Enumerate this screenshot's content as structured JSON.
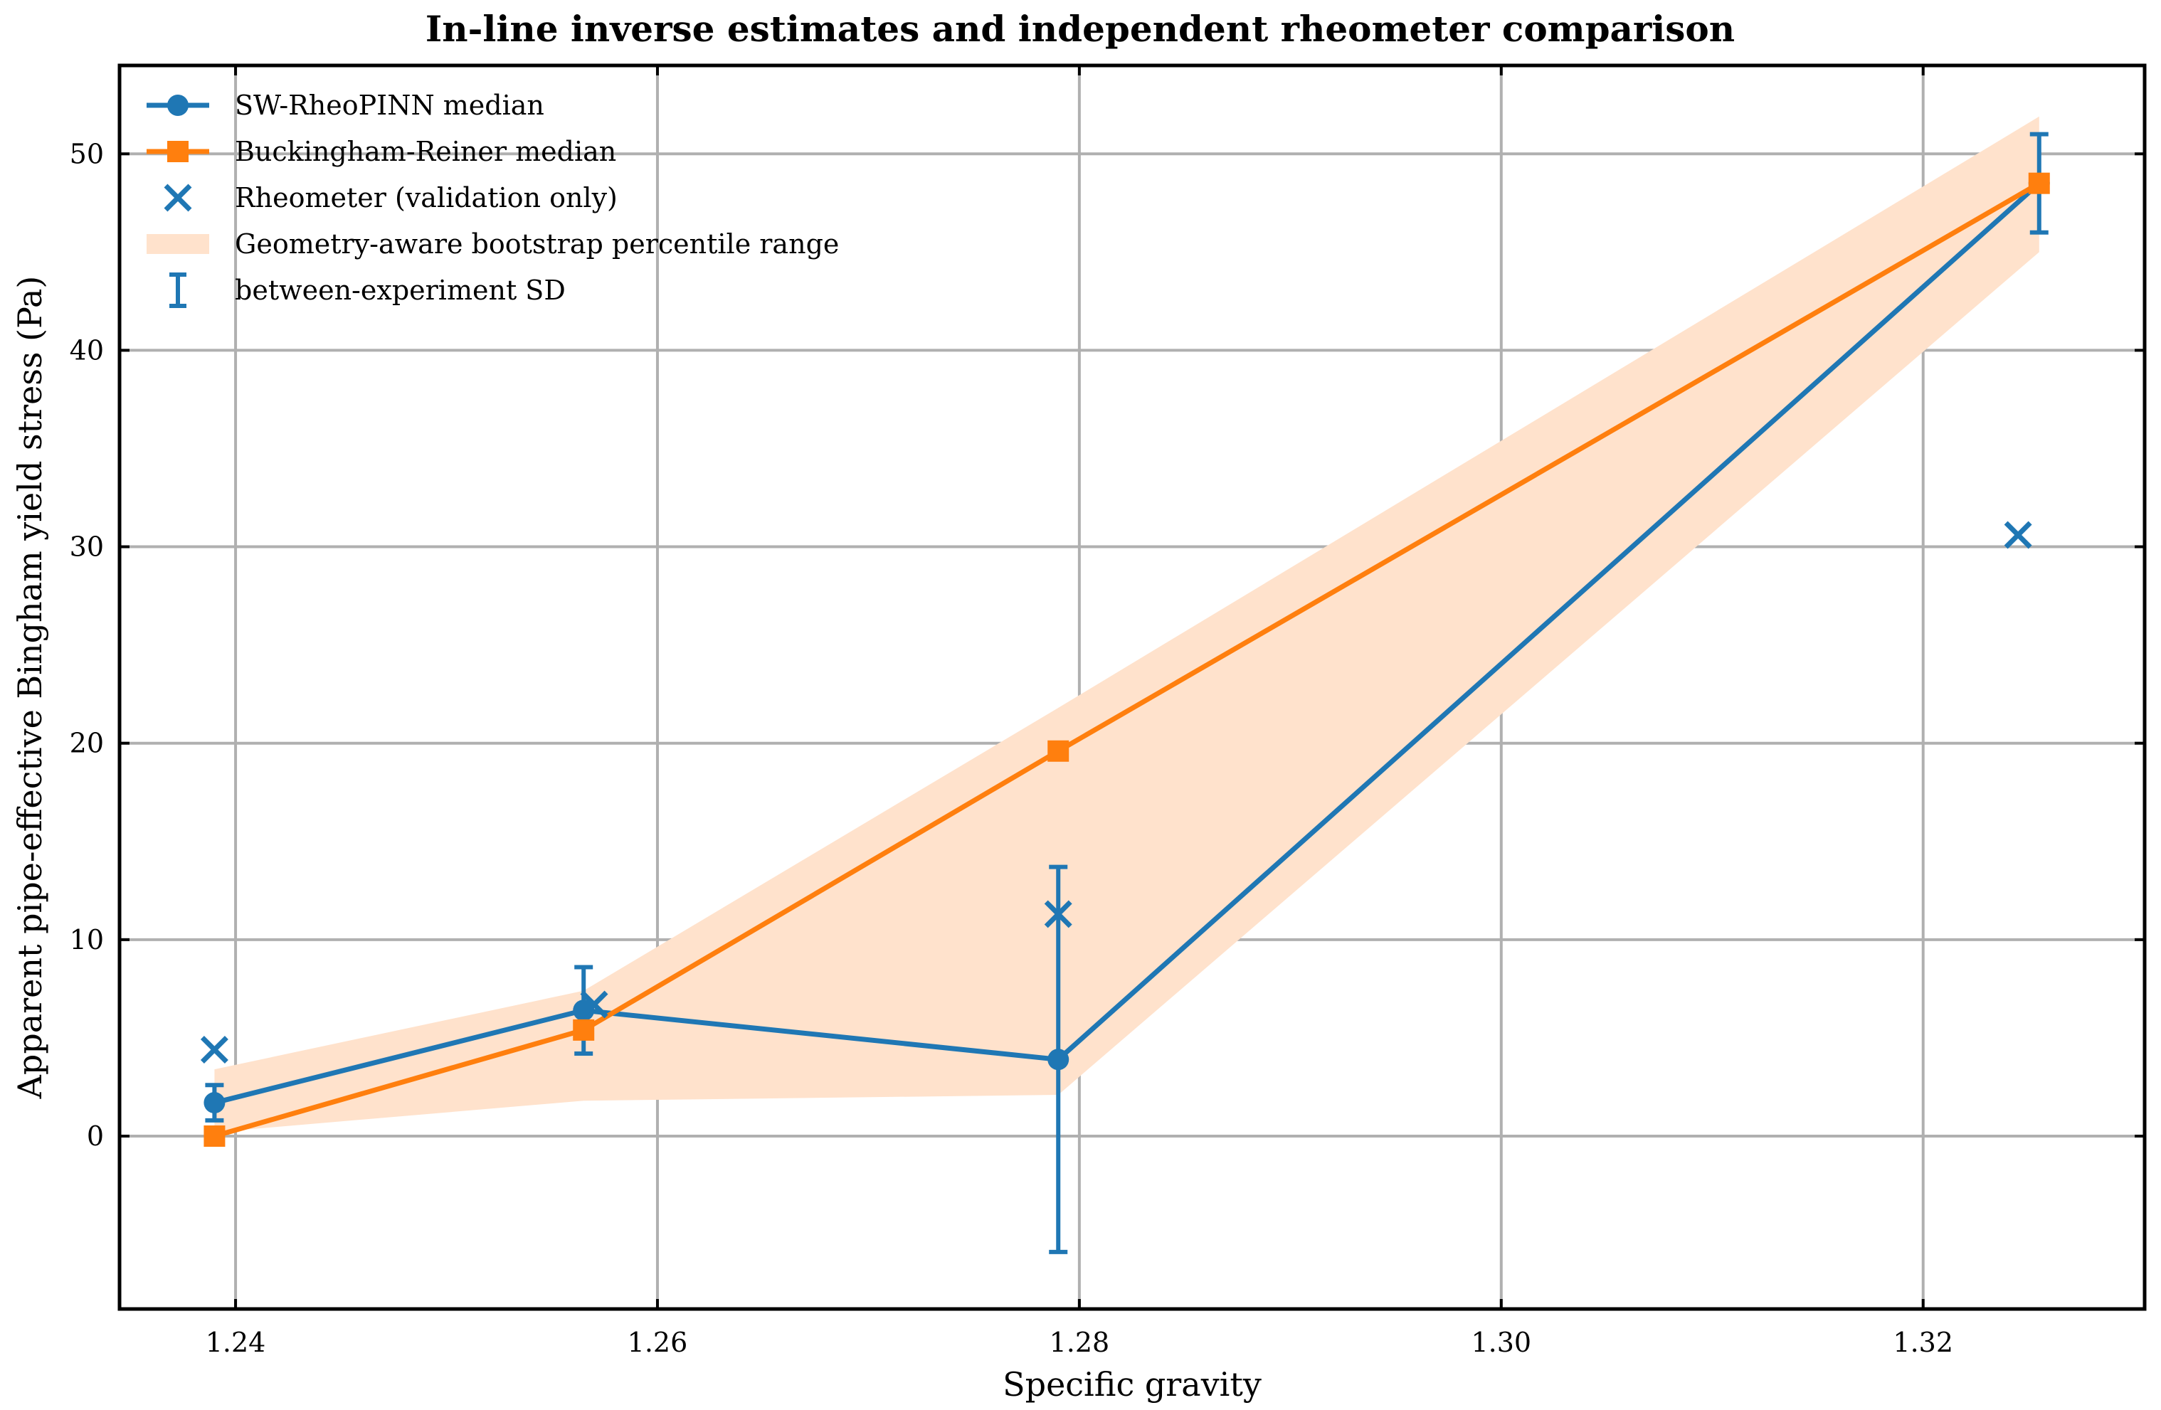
{
  "chart_data": {
    "type": "line",
    "title": "In-line inverse estimates and independent rheometer comparison",
    "xlabel": "Specific gravity",
    "ylabel": "Apparent pipe-effective Bingham yield stress (Pa)",
    "xlim": [
      1.2345,
      1.3305
    ],
    "ylim": [
      -8.8,
      54.5
    ],
    "xticks": [
      1.24,
      1.26,
      1.28,
      1.3,
      1.32
    ],
    "xtick_labels": [
      "1.24",
      "1.26",
      "1.28",
      "1.30",
      "1.32"
    ],
    "yticks": [
      0,
      10,
      20,
      30,
      40,
      50
    ],
    "ytick_labels": [
      "0",
      "10",
      "20",
      "30",
      "40",
      "50"
    ],
    "grid": true,
    "legend_position": "top-left",
    "colors": {
      "blue": "#1f77b4",
      "orange": "#ff7f0e",
      "band": "#ffe2cc"
    },
    "band": {
      "name": "Geometry-aware bootstrap percentile range",
      "x": [
        1.239,
        1.2565,
        1.279,
        1.3255
      ],
      "low": [
        0.2,
        1.8,
        2.1,
        45.0
      ],
      "high": [
        3.4,
        7.4,
        21.8,
        51.9
      ]
    },
    "series": [
      {
        "name": "SW-RheoPINN median",
        "marker": "circle",
        "color": "#1f77b4",
        "x": [
          1.239,
          1.2565,
          1.279,
          1.3255
        ],
        "y": [
          1.7,
          6.4,
          3.9,
          48.5
        ],
        "sd": [
          0.9,
          2.2,
          9.8,
          2.5
        ]
      },
      {
        "name": "Buckingham-Reiner median",
        "marker": "square",
        "color": "#ff7f0e",
        "x": [
          1.239,
          1.2565,
          1.279,
          1.3255
        ],
        "y": [
          0.0,
          5.4,
          19.6,
          48.5
        ]
      },
      {
        "name": "Rheometer (validation only)",
        "marker": "x",
        "color": "#1f77b4",
        "x": [
          1.239,
          1.257,
          1.279,
          1.3245
        ],
        "y": [
          4.4,
          6.7,
          11.3,
          30.6
        ]
      }
    ],
    "legend": [
      {
        "label": "SW-RheoPINN median",
        "kind": "line-circle",
        "color": "#1f77b4"
      },
      {
        "label": "Buckingham-Reiner median",
        "kind": "line-square",
        "color": "#ff7f0e"
      },
      {
        "label": "Rheometer (validation only)",
        "kind": "x",
        "color": "#1f77b4"
      },
      {
        "label": "Geometry-aware bootstrap percentile range",
        "kind": "patch",
        "color": "#ffe2cc"
      },
      {
        "label": "between-experiment SD",
        "kind": "errorbar",
        "color": "#1f77b4"
      }
    ]
  }
}
